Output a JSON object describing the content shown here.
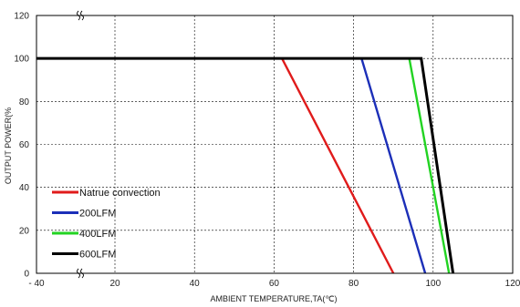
{
  "chart_data": {
    "type": "line",
    "title": "",
    "xlabel": "AMBIENT TEMPERATURE,TA(℃)",
    "ylabel": "OUTPUT POWER(%",
    "xlim": [
      -40,
      120
    ],
    "ylim": [
      0,
      120
    ],
    "axis_break": {
      "x_from": -40,
      "x_to": 10
    },
    "x_ticks": [
      {
        "value": -40,
        "label": "- 40"
      },
      {
        "value": 20,
        "label": "20"
      },
      {
        "value": 40,
        "label": "40"
      },
      {
        "value": 60,
        "label": "60"
      },
      {
        "value": 80,
        "label": "80"
      },
      {
        "value": 100,
        "label": "100"
      },
      {
        "value": 120,
        "label": "120"
      }
    ],
    "y_ticks": [
      {
        "value": 0,
        "label": "0"
      },
      {
        "value": 20,
        "label": "20"
      },
      {
        "value": 40,
        "label": "40"
      },
      {
        "value": 60,
        "label": "60"
      },
      {
        "value": 80,
        "label": "80"
      },
      {
        "value": 100,
        "label": "100"
      },
      {
        "value": 120,
        "label": "120"
      }
    ],
    "grid": true,
    "legend_position": "bottom-left",
    "series": [
      {
        "name": "Natrue convection",
        "color": "#e01b1b",
        "points": [
          [
            -40,
            100
          ],
          [
            62,
            100
          ],
          [
            90,
            0
          ]
        ]
      },
      {
        "name": "200LFM",
        "color": "#1c2fb8",
        "points": [
          [
            -40,
            100
          ],
          [
            82,
            100
          ],
          [
            98,
            0
          ]
        ]
      },
      {
        "name": "400LFM",
        "color": "#22d322",
        "points": [
          [
            -40,
            100
          ],
          [
            94,
            100
          ],
          [
            104,
            0
          ]
        ]
      },
      {
        "name": "600LFM",
        "color": "#000000",
        "points": [
          [
            -40,
            100
          ],
          [
            97,
            100
          ],
          [
            105,
            0
          ]
        ]
      }
    ]
  }
}
